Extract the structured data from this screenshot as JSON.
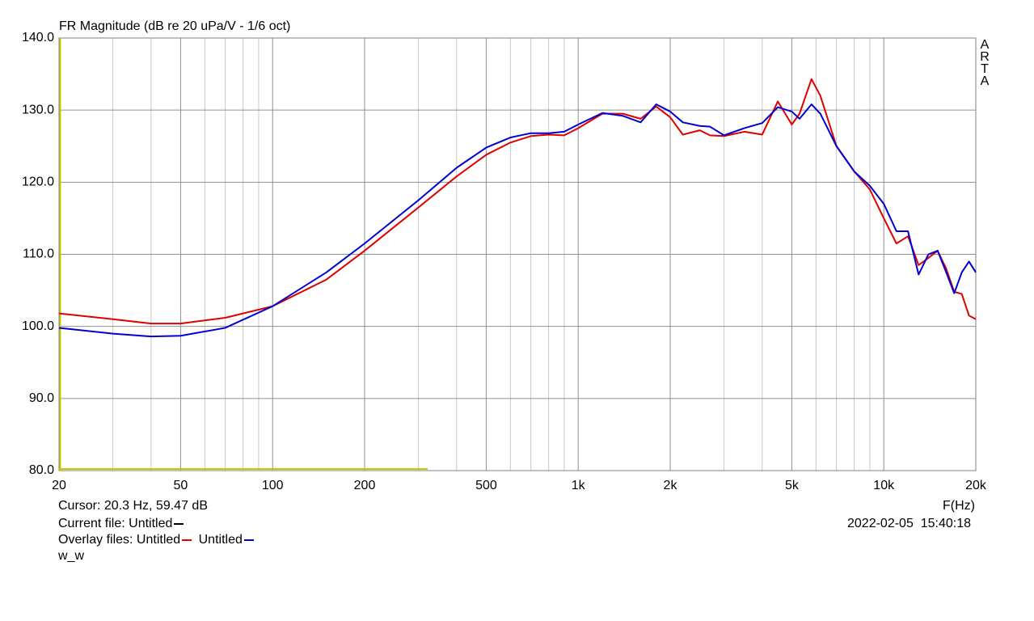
{
  "chart_data": {
    "type": "line",
    "title": "FR Magnitude (dB re 20 uPa/V - 1/6 oct)",
    "watermark": "ARTA",
    "x_label": "F(Hz)",
    "cursor_text": "Cursor: 20.3 Hz, 59.47 dB",
    "current_file_label": "Current file:",
    "current_file": "Untitled",
    "overlay_label": "Overlay files:",
    "note": "w_w",
    "timestamp": "2022-02-05  15:40:18",
    "log_x": true,
    "grid": true,
    "xlim": [
      20,
      20000
    ],
    "ylim": [
      80,
      140
    ],
    "xticks": [
      20,
      50,
      100,
      200,
      500,
      {
        "value": 1000,
        "label": "1k"
      },
      {
        "value": 2000,
        "label": "2k"
      },
      {
        "value": 5000,
        "label": "5k"
      },
      {
        "value": 10000,
        "label": "10k"
      },
      {
        "value": 20000,
        "label": "20k"
      }
    ],
    "xgrid": [
      30,
      40,
      60,
      70,
      80,
      90,
      300,
      400,
      600,
      700,
      800,
      900,
      3000,
      4000,
      6000,
      7000,
      8000,
      9000
    ],
    "yticks": [
      {
        "value": 80,
        "label": "80.0"
      },
      {
        "value": 90,
        "label": "90.0"
      },
      {
        "value": 100,
        "label": "100.0"
      },
      {
        "value": 110,
        "label": "110.0"
      },
      {
        "value": 120,
        "label": "120.0"
      },
      {
        "value": 130,
        "label": "130.0"
      },
      {
        "value": 140,
        "label": "140.0"
      }
    ],
    "x": [
      20,
      30,
      40,
      50,
      70,
      100,
      150,
      200,
      300,
      400,
      500,
      600,
      700,
      800,
      900,
      1000,
      1200,
      1400,
      1600,
      1800,
      2000,
      2200,
      2500,
      2700,
      3000,
      3500,
      4000,
      4500,
      5000,
      5300,
      5800,
      6200,
      7000,
      8000,
      9000,
      10000,
      11000,
      12000,
      13000,
      14000,
      15000,
      16000,
      17000,
      18000,
      19000,
      20000
    ],
    "series": [
      {
        "name": "Untitled",
        "color": "#e00000",
        "values": [
          101.8,
          101,
          100.4,
          100.4,
          101.2,
          102.8,
          106.5,
          110.5,
          116.5,
          120.8,
          123.8,
          125.5,
          126.4,
          126.6,
          126.5,
          127.5,
          129.5,
          129.5,
          128.8,
          130.5,
          129,
          126.6,
          127.2,
          126.5,
          126.4,
          127,
          126.6,
          131.2,
          128,
          129.5,
          134.3,
          132,
          125,
          121.5,
          119,
          115,
          111.5,
          112.5,
          108.5,
          109.5,
          110.5,
          108,
          104.8,
          104.5,
          101.5,
          101
        ]
      },
      {
        "name": "Untitled",
        "color": "#0000d0",
        "values": [
          99.8,
          99,
          98.6,
          98.7,
          99.8,
          102.8,
          107.5,
          111.5,
          117.5,
          122,
          124.8,
          126.2,
          126.8,
          126.8,
          127,
          128,
          129.6,
          129.2,
          128.3,
          130.8,
          129.8,
          128.3,
          127.8,
          127.7,
          126.5,
          127.5,
          128.2,
          130.4,
          129.8,
          128.8,
          130.8,
          129.5,
          125,
          121.5,
          119.5,
          117,
          113.2,
          113.2,
          107.2,
          110,
          110.5,
          107.5,
          104.6,
          107.5,
          109,
          107.5
        ]
      }
    ]
  }
}
